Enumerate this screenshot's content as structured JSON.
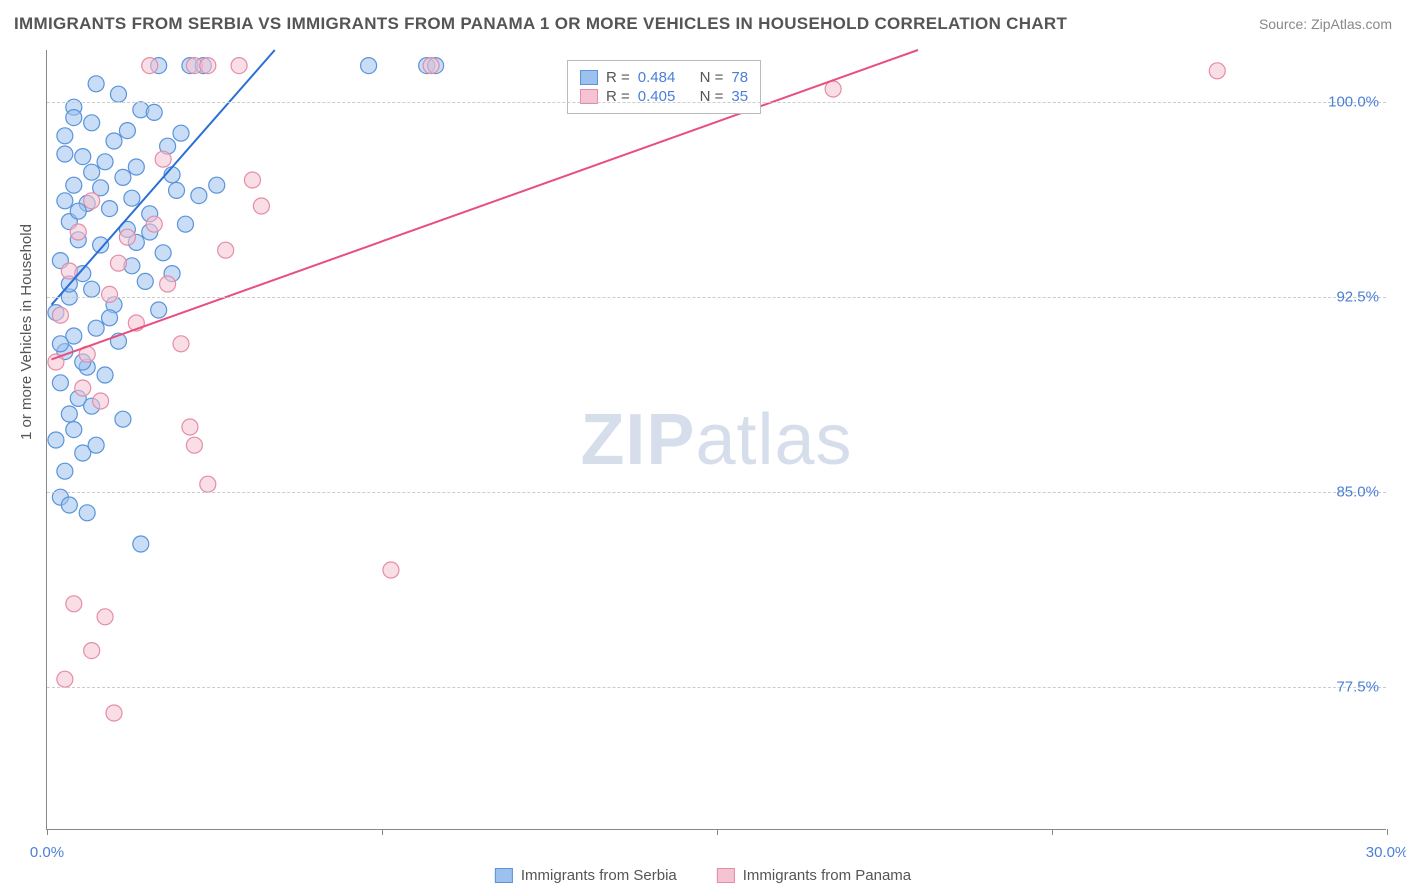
{
  "title": "IMMIGRANTS FROM SERBIA VS IMMIGRANTS FROM PANAMA 1 OR MORE VEHICLES IN HOUSEHOLD CORRELATION CHART",
  "source": "Source: ZipAtlas.com",
  "ylabel": "1 or more Vehicles in Household",
  "watermark_bold": "ZIP",
  "watermark_rest": "atlas",
  "colors": {
    "serbia_fill": "#9cc1ee",
    "serbia_stroke": "#5a94da",
    "panama_fill": "#f6c3d2",
    "panama_stroke": "#e58ca8",
    "trend_serbia": "#2a6fd6",
    "trend_panama": "#e94f7e",
    "grid": "#cccccc",
    "tick_label": "#4a7fd8",
    "axis": "#888888"
  },
  "marker_radius": 8,
  "marker_opacity": 0.55,
  "xlim": [
    0,
    30
  ],
  "ylim": [
    72,
    102
  ],
  "ytick_values": [
    77.5,
    85.0,
    92.5,
    100.0
  ],
  "ytick_labels": [
    "77.5%",
    "85.0%",
    "92.5%",
    "100.0%"
  ],
  "xtick_values": [
    0,
    7.5,
    15,
    22.5,
    30
  ],
  "xtick_labels": {
    "first": "0.0%",
    "last": "30.0%"
  },
  "legend_inset": {
    "series": [
      {
        "swatch_fill": "#9cc1ee",
        "swatch_stroke": "#5a94da",
        "r_label": "R =",
        "r_val": "0.484",
        "n_label": "N =",
        "n_val": "78"
      },
      {
        "swatch_fill": "#f6c3d2",
        "swatch_stroke": "#e58ca8",
        "r_label": "R =",
        "r_val": "0.405",
        "n_label": "N =",
        "n_val": "35"
      }
    ]
  },
  "bottom_legend": [
    {
      "swatch_fill": "#9cc1ee",
      "swatch_stroke": "#5a94da",
      "label": "Immigrants from Serbia"
    },
    {
      "swatch_fill": "#f6c3d2",
      "swatch_stroke": "#e58ca8",
      "label": "Immigrants from Panama"
    }
  ],
  "trend_lines": [
    {
      "series": "serbia",
      "x1": 0.1,
      "y1": 92.2,
      "x2": 5.1,
      "y2": 102.0,
      "color": "#2a6fd6",
      "width": 2
    },
    {
      "series": "panama",
      "x1": 0.1,
      "y1": 90.1,
      "x2": 19.5,
      "y2": 102.0,
      "color": "#e94f7e",
      "width": 2
    }
  ],
  "series": [
    {
      "name": "serbia",
      "fill": "#9cc1ee",
      "stroke": "#5a94da",
      "points": [
        [
          2.5,
          101.4
        ],
        [
          3.2,
          101.4
        ],
        [
          3.5,
          101.4
        ],
        [
          7.2,
          101.4
        ],
        [
          8.5,
          101.4
        ],
        [
          8.7,
          101.4
        ],
        [
          1.1,
          100.7
        ],
        [
          1.6,
          100.3
        ],
        [
          0.6,
          99.8
        ],
        [
          2.1,
          99.7
        ],
        [
          2.4,
          99.6
        ],
        [
          1.0,
          99.2
        ],
        [
          0.4,
          98.7
        ],
        [
          1.5,
          98.5
        ],
        [
          2.7,
          98.3
        ],
        [
          0.8,
          97.9
        ],
        [
          1.3,
          97.7
        ],
        [
          2.0,
          97.5
        ],
        [
          1.7,
          97.1
        ],
        [
          0.6,
          96.8
        ],
        [
          2.9,
          96.6
        ],
        [
          3.4,
          96.4
        ],
        [
          0.9,
          96.1
        ],
        [
          1.4,
          95.9
        ],
        [
          2.3,
          95.7
        ],
        [
          0.5,
          95.4
        ],
        [
          1.8,
          95.1
        ],
        [
          3.8,
          96.8
        ],
        [
          0.7,
          94.7
        ],
        [
          1.2,
          94.5
        ],
        [
          2.6,
          94.2
        ],
        [
          0.3,
          93.9
        ],
        [
          1.9,
          93.7
        ],
        [
          0.8,
          93.4
        ],
        [
          2.2,
          93.1
        ],
        [
          1.0,
          92.8
        ],
        [
          0.5,
          92.5
        ],
        [
          1.5,
          92.2
        ],
        [
          0.2,
          91.9
        ],
        [
          2.8,
          93.4
        ],
        [
          1.1,
          91.3
        ],
        [
          0.6,
          91.0
        ],
        [
          0.4,
          90.4
        ],
        [
          1.6,
          90.8
        ],
        [
          0.9,
          89.8
        ],
        [
          0.3,
          89.2
        ],
        [
          1.3,
          89.5
        ],
        [
          0.7,
          88.6
        ],
        [
          0.5,
          88.0
        ],
        [
          1.0,
          88.3
        ],
        [
          0.6,
          87.4
        ],
        [
          0.2,
          87.0
        ],
        [
          0.8,
          86.5
        ],
        [
          1.7,
          87.8
        ],
        [
          0.4,
          85.8
        ],
        [
          1.1,
          86.8
        ],
        [
          0.3,
          84.8
        ],
        [
          0.9,
          84.2
        ],
        [
          2.1,
          83.0
        ],
        [
          0.5,
          84.5
        ],
        [
          2.3,
          95.0
        ],
        [
          3.1,
          95.3
        ],
        [
          2.8,
          97.2
        ],
        [
          1.9,
          96.3
        ],
        [
          0.4,
          98.0
        ],
        [
          1.2,
          96.7
        ],
        [
          0.7,
          95.8
        ],
        [
          2.0,
          94.6
        ],
        [
          0.8,
          90.0
        ],
        [
          0.3,
          90.7
        ],
        [
          1.4,
          91.7
        ],
        [
          0.5,
          93.0
        ],
        [
          2.5,
          92.0
        ],
        [
          3.0,
          98.8
        ],
        [
          1.8,
          98.9
        ],
        [
          0.6,
          99.4
        ],
        [
          1.0,
          97.3
        ],
        [
          0.4,
          96.2
        ]
      ]
    },
    {
      "name": "panama",
      "fill": "#f6c3d2",
      "stroke": "#e58ca8",
      "points": [
        [
          2.3,
          101.4
        ],
        [
          3.3,
          101.4
        ],
        [
          3.6,
          101.4
        ],
        [
          4.3,
          101.4
        ],
        [
          8.6,
          101.4
        ],
        [
          26.2,
          101.2
        ],
        [
          17.6,
          100.5
        ],
        [
          4.6,
          97.0
        ],
        [
          4.8,
          96.0
        ],
        [
          1.0,
          96.2
        ],
        [
          2.4,
          95.3
        ],
        [
          1.6,
          93.8
        ],
        [
          0.3,
          91.8
        ],
        [
          2.7,
          93.0
        ],
        [
          0.9,
          90.3
        ],
        [
          0.2,
          90.0
        ],
        [
          3.0,
          90.7
        ],
        [
          3.3,
          86.8
        ],
        [
          3.6,
          85.3
        ],
        [
          1.2,
          88.5
        ],
        [
          0.6,
          80.7
        ],
        [
          1.0,
          78.9
        ],
        [
          0.4,
          77.8
        ],
        [
          1.5,
          76.5
        ],
        [
          7.7,
          82.0
        ],
        [
          1.3,
          80.2
        ],
        [
          3.2,
          87.5
        ],
        [
          0.8,
          89.0
        ],
        [
          2.0,
          91.5
        ],
        [
          1.4,
          92.6
        ],
        [
          0.5,
          93.5
        ],
        [
          1.8,
          94.8
        ],
        [
          2.6,
          97.8
        ],
        [
          0.7,
          95.0
        ],
        [
          4.0,
          94.3
        ]
      ]
    }
  ]
}
